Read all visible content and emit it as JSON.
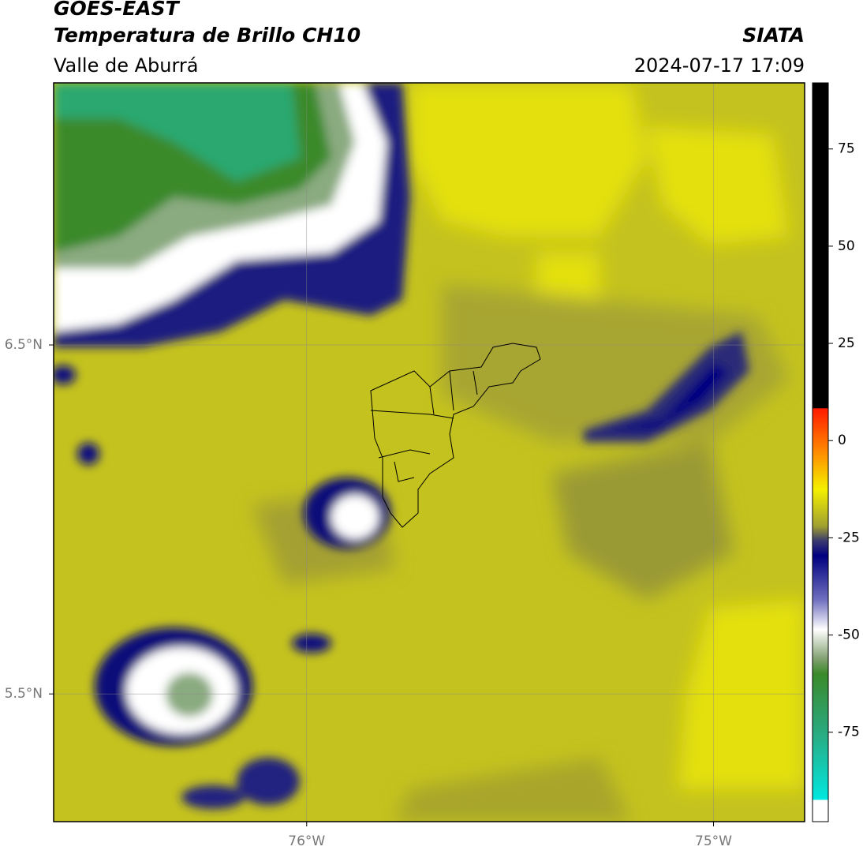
{
  "header": {
    "title": "GOES-EAST",
    "subtitle": "Temperatura de Brillo CH10",
    "region": "Valle de Aburrá",
    "source": "SIATA",
    "datetime": "2024-07-17 17:09"
  },
  "map": {
    "lon_range": [
      -76.622,
      -74.776
    ],
    "lat_range": [
      5.134,
      7.251
    ],
    "lon_ticks": [
      {
        "value": -76,
        "label": "76°W"
      },
      {
        "value": -75,
        "label": "75°W"
      }
    ],
    "lat_ticks": [
      {
        "value": 6.5,
        "label": "6.5°N"
      },
      {
        "value": 5.5,
        "label": "5.5°N"
      }
    ]
  },
  "colorbar": {
    "range": [
      -98,
      92
    ],
    "ticks": [
      75,
      50,
      25,
      0,
      -25,
      -50,
      -75
    ]
  }
}
